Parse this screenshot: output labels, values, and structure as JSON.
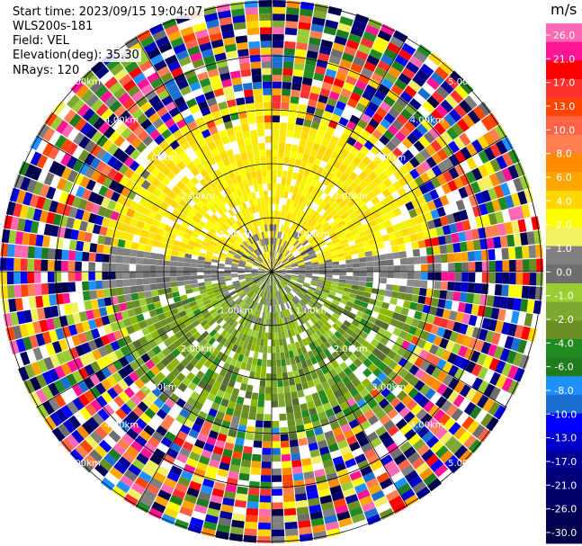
{
  "header": {
    "start_time": "Start time: 2023/09/15 19:04:07",
    "instrument": "WLS200s-181",
    "field": "Field: VEL",
    "elevation": "Elevation(deg): 35.30",
    "nrays": "NRays: 120"
  },
  "chart_data": {
    "type": "heatmap",
    "projection": "polar-ppi",
    "field": "VEL",
    "units": "m/s",
    "nrays": 120,
    "ring_labels": [
      "1.00km",
      "2.00km",
      "3.00km",
      "4.00km",
      "5.00km"
    ],
    "colorbar": {
      "unit": "m/s",
      "ticks": [
        "26.0",
        "21.0",
        "17.0",
        "13.0",
        "10.0",
        "8.0",
        "6.0",
        "4.0",
        "2.0",
        "1.0",
        "0.0",
        "-1.0",
        "-2.0",
        "-4.0",
        "-6.0",
        "-8.0",
        "-10.0",
        "-13.0",
        "-17.0",
        "-21.0",
        "-26.0",
        "-30.0"
      ],
      "colors": [
        "#ff69b4",
        "#ff1493",
        "#ff0000",
        "#ff3030",
        "#ff4500",
        "#ff6347",
        "#ff7f50",
        "#ff8c00",
        "#ffa500",
        "#ffd700",
        "#ffff00",
        "#f0f060",
        "#808080",
        "#6e6e6e",
        "#9acd32",
        "#7fa832",
        "#6b8e23",
        "#228b22",
        "#1e7b1e",
        "#1e90ff",
        "#1a6fd0",
        "#0000ff",
        "#0000cd",
        "#000099",
        "#00007a",
        "#000066",
        "#000055",
        "#00004a"
      ]
    },
    "pattern_summary": {
      "near_range_north": "positive velocities 1.0 to 4.0 m/s (yellow)",
      "near_range_south": "negative velocities -1.0 to -4.0 m/s (green)",
      "near_range_east_west": "approximately 0.0 m/s (gray)",
      "far_range": "noise across full colour scale"
    }
  }
}
